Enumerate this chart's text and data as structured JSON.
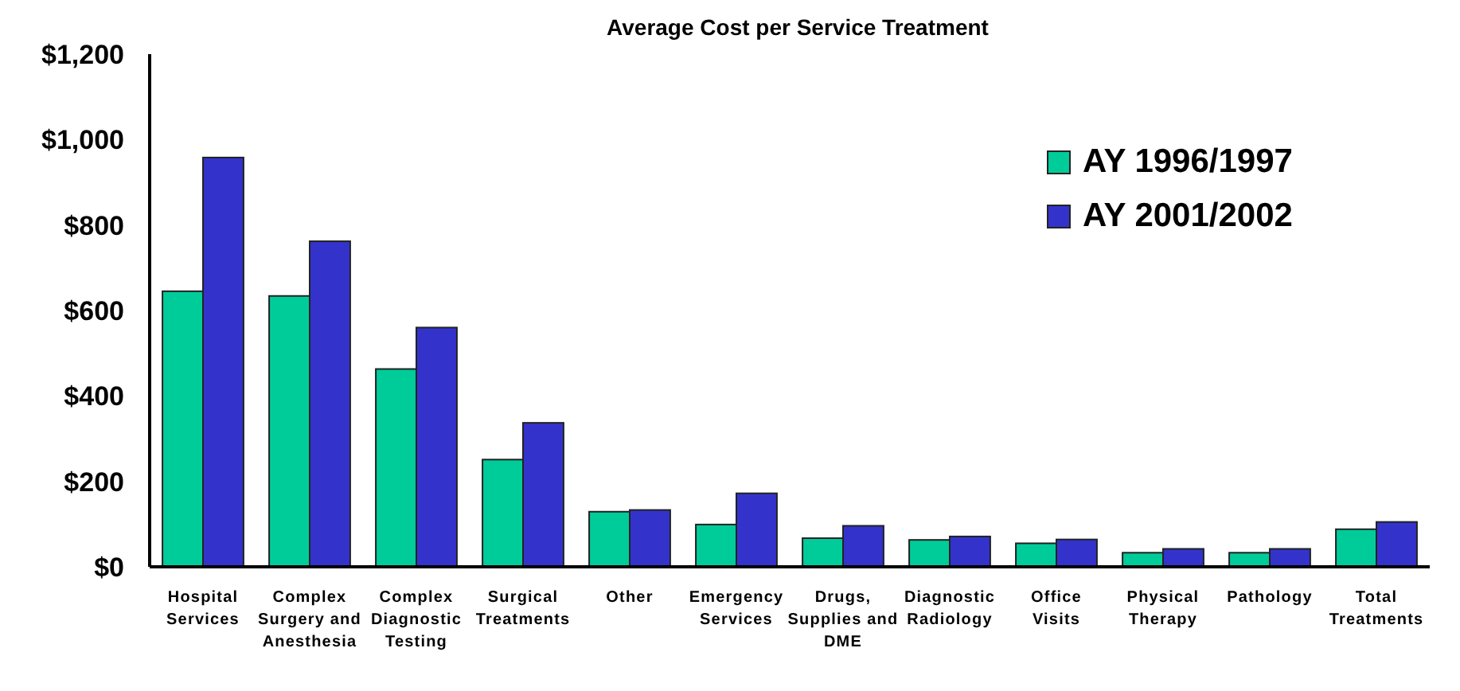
{
  "chart_data": {
    "type": "bar",
    "title": "Average Cost per Service Treatment",
    "categories": [
      "Hospital Services",
      "Complex Surgery and Anesthesia",
      "Complex Diagnostic Testing",
      "Surgical Treatments",
      "Other",
      "Emergency Services",
      "Drugs, Supplies and DME",
      "Diagnostic Radiology",
      "Office Visits",
      "Physical Therapy",
      "Pathology",
      "Total Treatments"
    ],
    "series": [
      {
        "name": "AY 1996/1997",
        "color": "#00cc99",
        "values": [
          645,
          634,
          463,
          251,
          129,
          99,
          67,
          63,
          55,
          33,
          33,
          88
        ]
      },
      {
        "name": "AY 2001/2002",
        "color": "#3333cc",
        "values": [
          958,
          762,
          560,
          337,
          133,
          172,
          96,
          71,
          64,
          42,
          42,
          105
        ]
      }
    ],
    "ylim": [
      0,
      1200
    ],
    "yticks": [
      {
        "value": 0,
        "label": "$0"
      },
      {
        "value": 200,
        "label": "$200"
      },
      {
        "value": 400,
        "label": "$400"
      },
      {
        "value": 600,
        "label": "$600"
      },
      {
        "value": 800,
        "label": "$800"
      },
      {
        "value": 1000,
        "label": "$1,000"
      },
      {
        "value": 1200,
        "label": "$1,200"
      }
    ],
    "grid": false,
    "legend": "top right"
  }
}
